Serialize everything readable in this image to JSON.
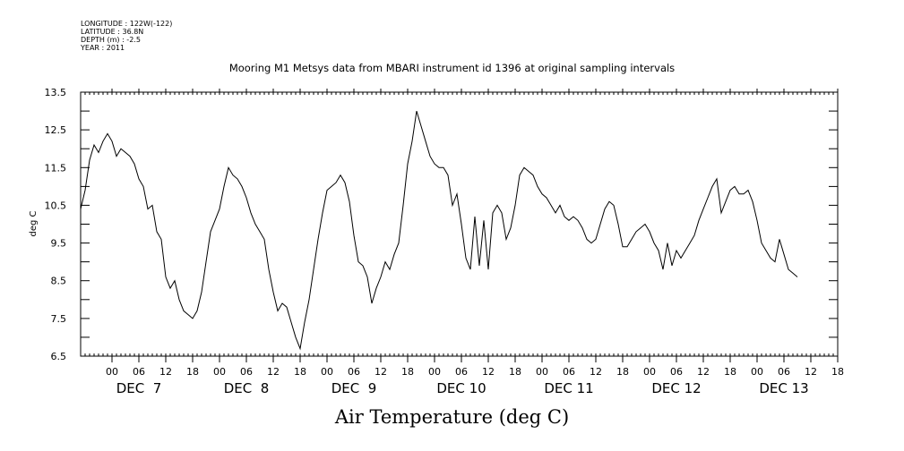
{
  "meta_lines": [
    "LONGITUDE : 122W(-122)",
    "LATITUDE : 36.8N",
    "DEPTH (m) : -2.5",
    "YEAR : 2011"
  ],
  "chart_data": {
    "type": "line",
    "title": "Mooring M1 Metsys data from MBARI instrument id 1396 at original sampling intervals",
    "xlabel": "Air Temperature (deg C)",
    "ylabel": "deg C",
    "ylim": [
      6.5,
      13.5
    ],
    "yticks": [
      "13.5",
      "12.5",
      "11.5",
      "10.5",
      "9.5",
      "8.5",
      "7.5",
      "6.5"
    ],
    "xlim_hours_from_dec7_00": [
      -7,
      162
    ],
    "x_tick_labels": [
      "00",
      "06",
      "12",
      "18",
      "00",
      "06",
      "12",
      "18",
      "00",
      "06",
      "12",
      "18",
      "00",
      "06",
      "12",
      "18",
      "00",
      "06",
      "12",
      "18",
      "00",
      "06",
      "12",
      "18",
      "00",
      "06",
      "12",
      "18"
    ],
    "day_labels": [
      "DEC  7",
      "DEC  8",
      "DEC  9",
      "DEC 10",
      "DEC 11",
      "DEC 12",
      "DEC 13"
    ],
    "grid": false,
    "series": [
      {
        "values": [
          [
            "Dec 6 17:00",
            10.4
          ],
          [
            "Dec 6 18:00",
            10.9
          ],
          [
            "Dec 6 19:00",
            11.7
          ],
          [
            "Dec 6 20:00",
            12.1
          ],
          [
            "Dec 6 21:00",
            11.9
          ],
          [
            "Dec 6 22:00",
            12.2
          ],
          [
            "Dec 6 23:00",
            12.4
          ],
          [
            "Dec 7 00:00",
            12.2
          ],
          [
            "Dec 7 01:00",
            11.8
          ],
          [
            "Dec 7 02:00",
            12.0
          ],
          [
            "Dec 7 03:00",
            11.9
          ],
          [
            "Dec 7 04:00",
            11.8
          ],
          [
            "Dec 7 05:00",
            11.6
          ],
          [
            "Dec 7 06:00",
            11.2
          ],
          [
            "Dec 7 07:00",
            11.0
          ],
          [
            "Dec 7 08:00",
            10.4
          ],
          [
            "Dec 7 09:00",
            10.5
          ],
          [
            "Dec 7 10:00",
            9.8
          ],
          [
            "Dec 7 11:00",
            9.6
          ],
          [
            "Dec 7 12:00",
            8.6
          ],
          [
            "Dec 7 13:00",
            8.3
          ],
          [
            "Dec 7 14:00",
            8.5
          ],
          [
            "Dec 7 15:00",
            8.0
          ],
          [
            "Dec 7 16:00",
            7.7
          ],
          [
            "Dec 7 17:00",
            7.6
          ],
          [
            "Dec 7 18:00",
            7.5
          ],
          [
            "Dec 7 19:00",
            7.7
          ],
          [
            "Dec 7 20:00",
            8.2
          ],
          [
            "Dec 7 21:00",
            9.0
          ],
          [
            "Dec 7 22:00",
            9.8
          ],
          [
            "Dec 7 23:00",
            10.1
          ],
          [
            "Dec 8 00:00",
            10.4
          ],
          [
            "Dec 8 01:00",
            11.0
          ],
          [
            "Dec 8 02:00",
            11.5
          ],
          [
            "Dec 8 03:00",
            11.3
          ],
          [
            "Dec 8 04:00",
            11.2
          ],
          [
            "Dec 8 05:00",
            11.0
          ],
          [
            "Dec 8 06:00",
            10.7
          ],
          [
            "Dec 8 07:00",
            10.3
          ],
          [
            "Dec 8 08:00",
            10.0
          ],
          [
            "Dec 8 09:00",
            9.8
          ],
          [
            "Dec 8 10:00",
            9.6
          ],
          [
            "Dec 8 11:00",
            8.8
          ],
          [
            "Dec 8 12:00",
            8.2
          ],
          [
            "Dec 8 13:00",
            7.7
          ],
          [
            "Dec 8 14:00",
            7.9
          ],
          [
            "Dec 8 15:00",
            7.8
          ],
          [
            "Dec 8 16:00",
            7.4
          ],
          [
            "Dec 8 17:00",
            7.0
          ],
          [
            "Dec 8 18:00",
            6.7
          ],
          [
            "Dec 8 19:00",
            7.4
          ],
          [
            "Dec 8 20:00",
            8.0
          ],
          [
            "Dec 8 21:00",
            8.8
          ],
          [
            "Dec 8 22:00",
            9.6
          ],
          [
            "Dec 8 23:00",
            10.3
          ],
          [
            "Dec 9 00:00",
            10.9
          ],
          [
            "Dec 9 01:00",
            11.0
          ],
          [
            "Dec 9 02:00",
            11.1
          ],
          [
            "Dec 9 03:00",
            11.3
          ],
          [
            "Dec 9 04:00",
            11.1
          ],
          [
            "Dec 9 05:00",
            10.6
          ],
          [
            "Dec 9 06:00",
            9.7
          ],
          [
            "Dec 9 07:00",
            9.0
          ],
          [
            "Dec 9 08:00",
            8.9
          ],
          [
            "Dec 9 09:00",
            8.6
          ],
          [
            "Dec 9 10:00",
            7.9
          ],
          [
            "Dec 9 11:00",
            8.3
          ],
          [
            "Dec 9 12:00",
            8.6
          ],
          [
            "Dec 9 13:00",
            9.0
          ],
          [
            "Dec 9 14:00",
            8.8
          ],
          [
            "Dec 9 15:00",
            9.2
          ],
          [
            "Dec 9 16:00",
            9.5
          ],
          [
            "Dec 9 17:00",
            10.5
          ],
          [
            "Dec 9 18:00",
            11.6
          ],
          [
            "Dec 9 19:00",
            12.2
          ],
          [
            "Dec 9 20:00",
            13.0
          ],
          [
            "Dec 9 21:00",
            12.6
          ],
          [
            "Dec 9 22:00",
            12.2
          ],
          [
            "Dec 9 23:00",
            11.8
          ],
          [
            "Dec 10 00:00",
            11.6
          ],
          [
            "Dec 10 01:00",
            11.5
          ],
          [
            "Dec 10 02:00",
            11.5
          ],
          [
            "Dec 10 03:00",
            11.3
          ],
          [
            "Dec 10 04:00",
            10.5
          ],
          [
            "Dec 10 05:00",
            10.8
          ],
          [
            "Dec 10 06:00",
            10.0
          ],
          [
            "Dec 10 07:00",
            9.1
          ],
          [
            "Dec 10 08:00",
            8.8
          ],
          [
            "Dec 10 09:00",
            10.2
          ],
          [
            "Dec 10 10:00",
            8.9
          ],
          [
            "Dec 10 11:00",
            10.1
          ],
          [
            "Dec 10 12:00",
            8.8
          ],
          [
            "Dec 10 13:00",
            10.3
          ],
          [
            "Dec 10 14:00",
            10.5
          ],
          [
            "Dec 10 15:00",
            10.3
          ],
          [
            "Dec 10 16:00",
            9.6
          ],
          [
            "Dec 10 17:00",
            9.9
          ],
          [
            "Dec 10 18:00",
            10.5
          ],
          [
            "Dec 10 19:00",
            11.3
          ],
          [
            "Dec 10 20:00",
            11.5
          ],
          [
            "Dec 10 21:00",
            11.4
          ],
          [
            "Dec 10 22:00",
            11.3
          ],
          [
            "Dec 10 23:00",
            11.0
          ],
          [
            "Dec 11 00:00",
            10.8
          ],
          [
            "Dec 11 01:00",
            10.7
          ],
          [
            "Dec 11 02:00",
            10.5
          ],
          [
            "Dec 11 03:00",
            10.3
          ],
          [
            "Dec 11 04:00",
            10.5
          ],
          [
            "Dec 11 05:00",
            10.2
          ],
          [
            "Dec 11 06:00",
            10.1
          ],
          [
            "Dec 11 07:00",
            10.2
          ],
          [
            "Dec 11 08:00",
            10.1
          ],
          [
            "Dec 11 09:00",
            9.9
          ],
          [
            "Dec 11 10:00",
            9.6
          ],
          [
            "Dec 11 11:00",
            9.5
          ],
          [
            "Dec 11 12:00",
            9.6
          ],
          [
            "Dec 11 13:00",
            10.0
          ],
          [
            "Dec 11 14:00",
            10.4
          ],
          [
            "Dec 11 15:00",
            10.6
          ],
          [
            "Dec 11 16:00",
            10.5
          ],
          [
            "Dec 11 17:00",
            10.0
          ],
          [
            "Dec 11 18:00",
            9.4
          ],
          [
            "Dec 11 19:00",
            9.4
          ],
          [
            "Dec 11 20:00",
            9.6
          ],
          [
            "Dec 11 21:00",
            9.8
          ],
          [
            "Dec 11 22:00",
            9.9
          ],
          [
            "Dec 11 23:00",
            10.0
          ],
          [
            "Dec 12 00:00",
            9.8
          ],
          [
            "Dec 12 01:00",
            9.5
          ],
          [
            "Dec 12 02:00",
            9.3
          ],
          [
            "Dec 12 03:00",
            8.8
          ],
          [
            "Dec 12 04:00",
            9.5
          ],
          [
            "Dec 12 05:00",
            8.9
          ],
          [
            "Dec 12 06:00",
            9.3
          ],
          [
            "Dec 12 07:00",
            9.1
          ],
          [
            "Dec 12 08:00",
            9.3
          ],
          [
            "Dec 12 09:00",
            9.5
          ],
          [
            "Dec 12 10:00",
            9.7
          ],
          [
            "Dec 12 11:00",
            10.1
          ],
          [
            "Dec 12 12:00",
            10.4
          ],
          [
            "Dec 12 13:00",
            10.7
          ],
          [
            "Dec 12 14:00",
            11.0
          ],
          [
            "Dec 12 15:00",
            11.2
          ],
          [
            "Dec 12 16:00",
            10.3
          ],
          [
            "Dec 12 17:00",
            10.6
          ],
          [
            "Dec 12 18:00",
            10.9
          ],
          [
            "Dec 12 19:00",
            11.0
          ],
          [
            "Dec 12 20:00",
            10.8
          ],
          [
            "Dec 12 21:00",
            10.8
          ],
          [
            "Dec 12 22:00",
            10.9
          ],
          [
            "Dec 12 23:00",
            10.6
          ],
          [
            "Dec 13 00:00",
            10.1
          ],
          [
            "Dec 13 01:00",
            9.5
          ],
          [
            "Dec 13 02:00",
            9.3
          ],
          [
            "Dec 13 03:00",
            9.1
          ],
          [
            "Dec 13 04:00",
            9.0
          ],
          [
            "Dec 13 05:00",
            9.6
          ],
          [
            "Dec 13 06:00",
            9.2
          ],
          [
            "Dec 13 07:00",
            8.8
          ],
          [
            "Dec 13 08:00",
            8.7
          ],
          [
            "Dec 13 09:00",
            8.6
          ]
        ]
      }
    ]
  }
}
